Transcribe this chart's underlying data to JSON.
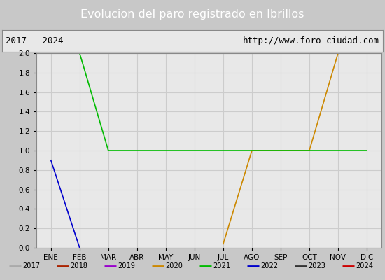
{
  "title": "Evolucion del paro registrado en Ibrillos",
  "subtitle_left": "2017 - 2024",
  "subtitle_right": "http://www.foro-ciudad.com",
  "x_labels": [
    "ENE",
    "FEB",
    "MAR",
    "ABR",
    "MAY",
    "JUN",
    "JUL",
    "AGO",
    "SEP",
    "OCT",
    "NOV",
    "DIC"
  ],
  "ylim": [
    0.0,
    2.0
  ],
  "yticks": [
    0.0,
    0.2,
    0.4,
    0.6,
    0.8,
    1.0,
    1.2,
    1.4,
    1.6,
    1.8,
    2.0
  ],
  "series": {
    "2017": {
      "color": "#aaaaaa",
      "data": [
        null,
        null,
        null,
        null,
        null,
        null,
        null,
        null,
        null,
        null,
        null,
        null
      ]
    },
    "2018": {
      "color": "#aa2200",
      "data": [
        null,
        null,
        null,
        null,
        null,
        null,
        null,
        null,
        null,
        null,
        null,
        null
      ]
    },
    "2019": {
      "color": "#9900cc",
      "data": [
        null,
        null,
        null,
        null,
        null,
        null,
        null,
        null,
        null,
        null,
        null,
        null
      ]
    },
    "2020": {
      "color": "#cc8800",
      "data": [
        null,
        null,
        null,
        null,
        null,
        null,
        0.04,
        1.0,
        1.0,
        1.0,
        2.0,
        2.0
      ]
    },
    "2021": {
      "color": "#00bb00",
      "data": [
        2.0,
        2.0,
        1.0,
        1.0,
        1.0,
        1.0,
        1.0,
        1.0,
        1.0,
        1.0,
        1.0,
        1.0
      ]
    },
    "2022": {
      "color": "#0000cc",
      "data": [
        0.9,
        0.0,
        null,
        null,
        null,
        null,
        null,
        null,
        null,
        null,
        null,
        null
      ]
    },
    "2023": {
      "color": "#333333",
      "data": [
        null,
        null,
        null,
        null,
        null,
        null,
        null,
        null,
        null,
        null,
        null,
        null
      ]
    },
    "2024": {
      "color": "#cc0000",
      "data": [
        null,
        null,
        null,
        null,
        null,
        null,
        null,
        null,
        null,
        null,
        null,
        null
      ]
    }
  },
  "legend_order": [
    "2017",
    "2018",
    "2019",
    "2020",
    "2021",
    "2022",
    "2023",
    "2024"
  ],
  "title_bg_color": "#4477dd",
  "title_text_color": "#ffffff",
  "subtitle_bg_color": "#e8e8e8",
  "plot_bg_color": "#e8e8e8",
  "grid_color": "#cccccc",
  "outer_bg_color": "#c8c8c8",
  "figsize": [
    5.5,
    4.0
  ],
  "dpi": 100
}
